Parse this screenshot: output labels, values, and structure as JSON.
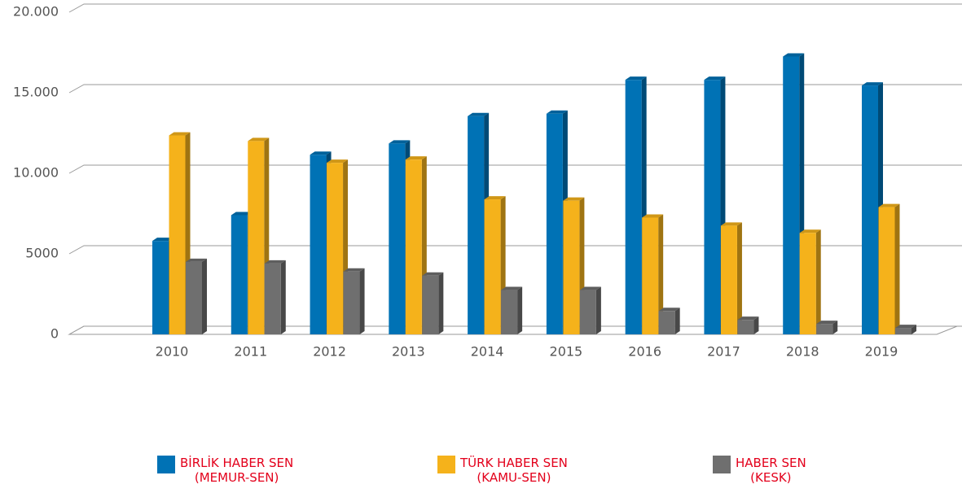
{
  "chart_data": {
    "type": "bar3d",
    "categories": [
      "2010",
      "2011",
      "2012",
      "2013",
      "2014",
      "2015",
      "2016",
      "2017",
      "2018",
      "2019"
    ],
    "series": [
      {
        "name": "BİRLİK HABER SEN\n(MEMUR-SEN)",
        "color": "#0072b5",
        "values": [
          5800,
          7400,
          11150,
          11850,
          13550,
          13700,
          15800,
          15800,
          17250,
          15450
        ]
      },
      {
        "name": "TÜRK HABER SEN\n(KAMU-SEN)",
        "color": "#f5b21b",
        "values": [
          12350,
          12000,
          10650,
          10850,
          8380,
          8300,
          7250,
          6750,
          6300,
          7900
        ]
      },
      {
        "name": "HABER SEN\n(KESK)",
        "color": "#6f6f6f",
        "values": [
          4500,
          4400,
          3900,
          3650,
          2750,
          2750,
          1450,
          900,
          650,
          400
        ]
      }
    ],
    "ylim": [
      0,
      20000
    ],
    "yticks": [
      0,
      5000,
      {
        "value": 10000,
        "label": "10.000"
      },
      {
        "value": 15000,
        "label": "15.000"
      },
      {
        "value": 20000,
        "label": "20.000"
      }
    ],
    "grid": true
  }
}
